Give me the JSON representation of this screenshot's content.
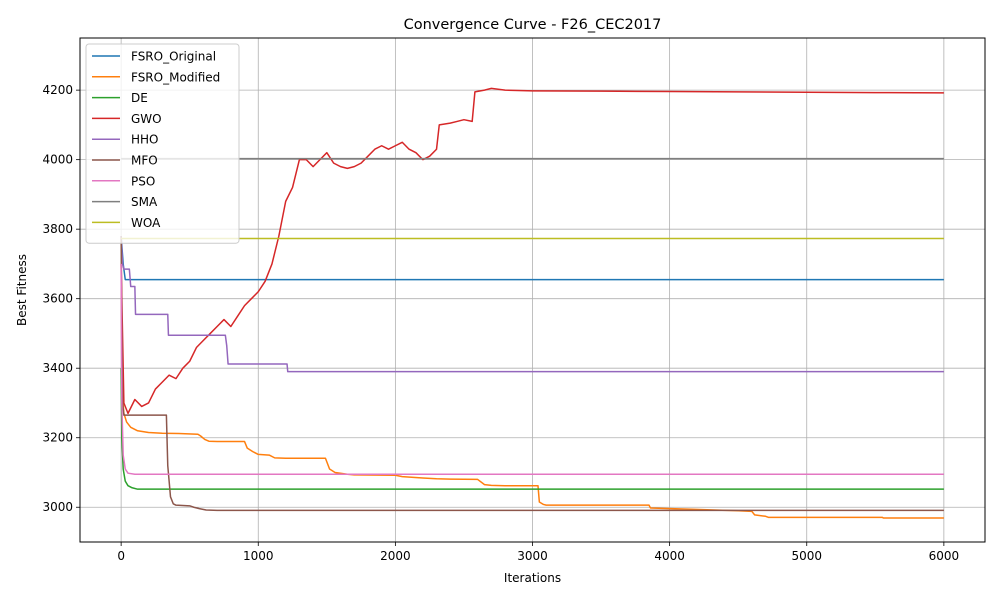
{
  "chart_data": {
    "type": "line",
    "title": "Convergence Curve - F26_CEC2017",
    "xlabel": "Iterations",
    "ylabel": "Best Fitness",
    "xlim": [
      -300,
      6300
    ],
    "ylim": [
      2900,
      4350
    ],
    "xticks": [
      0,
      1000,
      2000,
      3000,
      4000,
      5000,
      6000
    ],
    "yticks": [
      3000,
      3200,
      3400,
      3600,
      3800,
      4000,
      4200
    ],
    "grid": true,
    "legend_position": "top-left",
    "series": [
      {
        "name": "FSRO_Original",
        "color": "#1f77b4",
        "points": [
          [
            0,
            3780
          ],
          [
            15,
            3700
          ],
          [
            30,
            3655
          ],
          [
            6000,
            3655
          ]
        ]
      },
      {
        "name": "FSRO_Modified",
        "color": "#ff7f0e",
        "points": [
          [
            0,
            3700
          ],
          [
            5,
            3450
          ],
          [
            10,
            3320
          ],
          [
            20,
            3270
          ],
          [
            40,
            3245
          ],
          [
            70,
            3230
          ],
          [
            120,
            3220
          ],
          [
            200,
            3215
          ],
          [
            300,
            3213
          ],
          [
            420,
            3212
          ],
          [
            560,
            3210
          ],
          [
            580,
            3205
          ],
          [
            610,
            3195
          ],
          [
            640,
            3190
          ],
          [
            700,
            3189
          ],
          [
            900,
            3189
          ],
          [
            920,
            3170
          ],
          [
            960,
            3160
          ],
          [
            1000,
            3152
          ],
          [
            1080,
            3150
          ],
          [
            1120,
            3142
          ],
          [
            1200,
            3141
          ],
          [
            1490,
            3141
          ],
          [
            1520,
            3110
          ],
          [
            1560,
            3100
          ],
          [
            1650,
            3095
          ],
          [
            1700,
            3093
          ],
          [
            2000,
            3092
          ],
          [
            2050,
            3088
          ],
          [
            2200,
            3084
          ],
          [
            2300,
            3082
          ],
          [
            2400,
            3081
          ],
          [
            2600,
            3080
          ],
          [
            2650,
            3065
          ],
          [
            2700,
            3063
          ],
          [
            2800,
            3062
          ],
          [
            3040,
            3062
          ],
          [
            3050,
            3015
          ],
          [
            3080,
            3008
          ],
          [
            3100,
            3006
          ],
          [
            3850,
            3006
          ],
          [
            3860,
            2998
          ],
          [
            4500,
            2990
          ],
          [
            4600,
            2988
          ],
          [
            4620,
            2978
          ],
          [
            4700,
            2974
          ],
          [
            4720,
            2971
          ],
          [
            5000,
            2971
          ],
          [
            5550,
            2971
          ],
          [
            5560,
            2969
          ],
          [
            6000,
            2969
          ]
        ]
      },
      {
        "name": "DE",
        "color": "#2ca02c",
        "points": [
          [
            0,
            3400
          ],
          [
            5,
            3200
          ],
          [
            15,
            3110
          ],
          [
            30,
            3075
          ],
          [
            50,
            3062
          ],
          [
            80,
            3056
          ],
          [
            120,
            3052
          ],
          [
            200,
            3052
          ],
          [
            6000,
            3052
          ]
        ]
      },
      {
        "name": "GWO",
        "color": "#d62728",
        "points": [
          [
            0,
            3700
          ],
          [
            20,
            3300
          ],
          [
            50,
            3270
          ],
          [
            100,
            3310
          ],
          [
            150,
            3290
          ],
          [
            200,
            3300
          ],
          [
            250,
            3340
          ],
          [
            300,
            3360
          ],
          [
            350,
            3380
          ],
          [
            400,
            3370
          ],
          [
            450,
            3400
          ],
          [
            500,
            3420
          ],
          [
            550,
            3460
          ],
          [
            600,
            3480
          ],
          [
            650,
            3500
          ],
          [
            700,
            3520
          ],
          [
            750,
            3540
          ],
          [
            800,
            3520
          ],
          [
            850,
            3550
          ],
          [
            900,
            3580
          ],
          [
            950,
            3600
          ],
          [
            1000,
            3620
          ],
          [
            1050,
            3650
          ],
          [
            1100,
            3700
          ],
          [
            1150,
            3780
          ],
          [
            1200,
            3880
          ],
          [
            1250,
            3920
          ],
          [
            1300,
            4000
          ],
          [
            1350,
            4000
          ],
          [
            1400,
            3980
          ],
          [
            1450,
            4000
          ],
          [
            1500,
            4020
          ],
          [
            1550,
            3990
          ],
          [
            1600,
            3980
          ],
          [
            1650,
            3975
          ],
          [
            1700,
            3980
          ],
          [
            1750,
            3990
          ],
          [
            1800,
            4010
          ],
          [
            1850,
            4030
          ],
          [
            1900,
            4040
          ],
          [
            1950,
            4030
          ],
          [
            2000,
            4040
          ],
          [
            2050,
            4050
          ],
          [
            2100,
            4030
          ],
          [
            2150,
            4020
          ],
          [
            2200,
            4000
          ],
          [
            2250,
            4010
          ],
          [
            2300,
            4030
          ],
          [
            2320,
            4100
          ],
          [
            2400,
            4105
          ],
          [
            2450,
            4110
          ],
          [
            2500,
            4115
          ],
          [
            2560,
            4110
          ],
          [
            2580,
            4195
          ],
          [
            2650,
            4200
          ],
          [
            2700,
            4205
          ],
          [
            2800,
            4200
          ],
          [
            3000,
            4198
          ],
          [
            3500,
            4197
          ],
          [
            4000,
            4196
          ],
          [
            4500,
            4195
          ],
          [
            5000,
            4194
          ],
          [
            5500,
            4193
          ],
          [
            6000,
            4192
          ]
        ]
      },
      {
        "name": "HHO",
        "color": "#9467bd",
        "points": [
          [
            0,
            3780
          ],
          [
            10,
            3700
          ],
          [
            20,
            3685
          ],
          [
            60,
            3685
          ],
          [
            70,
            3635
          ],
          [
            100,
            3635
          ],
          [
            105,
            3555
          ],
          [
            340,
            3555
          ],
          [
            345,
            3495
          ],
          [
            760,
            3495
          ],
          [
            770,
            3465
          ],
          [
            780,
            3412
          ],
          [
            1210,
            3412
          ],
          [
            1215,
            3390
          ],
          [
            6000,
            3390
          ]
        ]
      },
      {
        "name": "MFO",
        "color": "#8c564b",
        "points": [
          [
            0,
            3780
          ],
          [
            5,
            3500
          ],
          [
            10,
            3300
          ],
          [
            20,
            3265
          ],
          [
            330,
            3265
          ],
          [
            340,
            3120
          ],
          [
            360,
            3030
          ],
          [
            380,
            3010
          ],
          [
            400,
            3006
          ],
          [
            450,
            3005
          ],
          [
            500,
            3004
          ],
          [
            530,
            3000
          ],
          [
            570,
            2996
          ],
          [
            620,
            2992
          ],
          [
            700,
            2991
          ],
          [
            6000,
            2991
          ]
        ]
      },
      {
        "name": "PSO",
        "color": "#e377c2",
        "points": [
          [
            0,
            3700
          ],
          [
            5,
            3300
          ],
          [
            15,
            3150
          ],
          [
            30,
            3110
          ],
          [
            50,
            3098
          ],
          [
            100,
            3095
          ],
          [
            300,
            3095
          ],
          [
            6000,
            3095
          ]
        ]
      },
      {
        "name": "SMA",
        "color": "#7f7f7f",
        "points": [
          [
            0,
            4003
          ],
          [
            6000,
            4003
          ]
        ]
      },
      {
        "name": "WOA",
        "color": "#bcbd22",
        "points": [
          [
            0,
            3773
          ],
          [
            6000,
            3773
          ]
        ]
      }
    ]
  }
}
